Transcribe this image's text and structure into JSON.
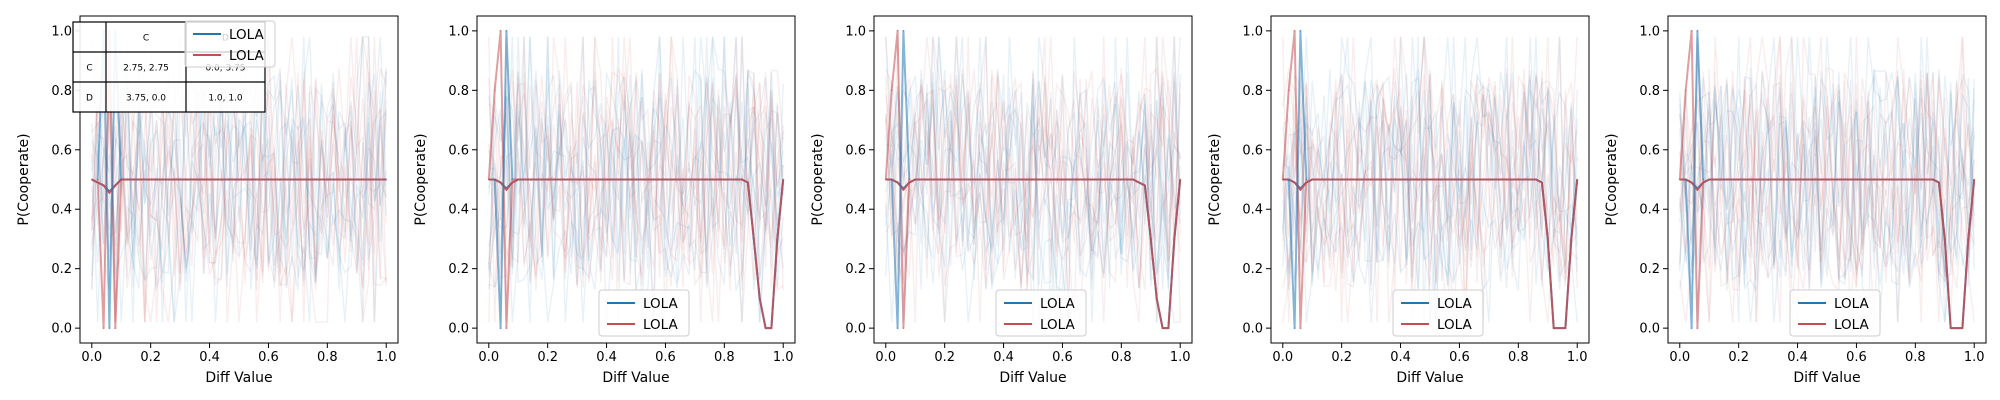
{
  "chart_data": [
    {
      "type": "line",
      "xlabel": "Diff Value",
      "ylabel": "P(Cooperate)",
      "xlim": [
        -0.04,
        1.04
      ],
      "ylim": [
        -0.05,
        1.05
      ],
      "xticks": [
        "0.0",
        "0.2",
        "0.4",
        "0.6",
        "0.8",
        "1.0"
      ],
      "yticks": [
        "0.0",
        "0.2",
        "0.4",
        "0.6",
        "0.8",
        "1.0"
      ],
      "legend_position": "upper-left",
      "legend": [
        {
          "label": "LOLA",
          "color": "#1f77b4"
        },
        {
          "label": "LOLA",
          "color": "#c44e52"
        }
      ],
      "payoff_table": {
        "col_headers": [
          "C",
          "D"
        ],
        "rows": [
          {
            "label": "C",
            "cells": [
              "2.75, 2.75",
              "0.0, 3.75"
            ]
          },
          {
            "label": "D",
            "cells": [
              "3.75, 0.0",
              "1.0, 1.0"
            ]
          }
        ]
      },
      "series": [
        {
          "color": "#1f77b4",
          "x": [
            0.0,
            0.02,
            0.04,
            0.06,
            0.08,
            0.1,
            0.2,
            0.3,
            0.4,
            0.5,
            0.6,
            0.7,
            0.8,
            0.9,
            1.0
          ],
          "y": [
            0.5,
            0.49,
            0.48,
            0.46,
            0.48,
            0.5,
            0.5,
            0.5,
            0.5,
            0.5,
            0.5,
            0.5,
            0.5,
            0.5,
            0.5
          ]
        },
        {
          "color": "#c44e52",
          "x": [
            0.0,
            0.02,
            0.04,
            0.06,
            0.08,
            0.1,
            0.2,
            0.3,
            0.4,
            0.5,
            0.6,
            0.7,
            0.8,
            0.9,
            1.0
          ],
          "y": [
            0.5,
            0.49,
            0.48,
            0.455,
            0.48,
            0.5,
            0.5,
            0.5,
            0.5,
            0.5,
            0.5,
            0.5,
            0.5,
            0.5,
            0.5
          ]
        },
        {
          "color": "#c44e52",
          "x": [
            0.02,
            0.04,
            0.06,
            0.08,
            0.1
          ],
          "y": [
            0.5,
            0.0,
            1.0,
            0.0,
            0.5
          ]
        },
        {
          "color": "#1f77b4",
          "x": [
            0.02,
            0.04,
            0.06,
            0.08,
            0.1
          ],
          "y": [
            0.5,
            1.0,
            0.0,
            1.0,
            0.5
          ]
        }
      ]
    },
    {
      "type": "line",
      "xlabel": "Diff Value",
      "ylabel": "P(Cooperate)",
      "xlim": [
        -0.04,
        1.04
      ],
      "ylim": [
        -0.05,
        1.05
      ],
      "xticks": [
        "0.0",
        "0.2",
        "0.4",
        "0.6",
        "0.8",
        "1.0"
      ],
      "yticks": [
        "0.0",
        "0.2",
        "0.4",
        "0.6",
        "0.8",
        "1.0"
      ],
      "legend_position": "lower-center",
      "legend": [
        {
          "label": "LOLA",
          "color": "#1f77b4"
        },
        {
          "label": "LOLA",
          "color": "#c44e52"
        }
      ],
      "series": [
        {
          "color": "#1f77b4",
          "x": [
            0.0,
            0.02,
            0.04,
            0.06,
            0.08,
            0.1,
            0.2,
            0.3,
            0.4,
            0.5,
            0.6,
            0.7,
            0.8,
            0.84,
            0.86,
            0.88,
            0.9,
            0.92,
            0.94,
            0.96,
            0.98,
            1.0
          ],
          "y": [
            0.5,
            0.5,
            0.49,
            0.47,
            0.49,
            0.5,
            0.5,
            0.5,
            0.5,
            0.5,
            0.5,
            0.5,
            0.5,
            0.5,
            0.5,
            0.49,
            0.3,
            0.1,
            0.0,
            0.0,
            0.3,
            0.5
          ]
        },
        {
          "color": "#c44e52",
          "x": [
            0.0,
            0.02,
            0.04,
            0.06,
            0.08,
            0.1,
            0.2,
            0.3,
            0.4,
            0.5,
            0.6,
            0.7,
            0.8,
            0.84,
            0.86,
            0.88,
            0.9,
            0.92,
            0.94,
            0.96,
            0.98,
            1.0
          ],
          "y": [
            0.5,
            0.5,
            0.49,
            0.465,
            0.49,
            0.5,
            0.5,
            0.5,
            0.5,
            0.5,
            0.5,
            0.5,
            0.5,
            0.5,
            0.5,
            0.49,
            0.3,
            0.1,
            0.0,
            0.0,
            0.3,
            0.5
          ]
        },
        {
          "color": "#c44e52",
          "x": [
            0.0,
            0.02,
            0.04,
            0.06,
            0.08,
            0.1
          ],
          "y": [
            0.5,
            0.8,
            1.0,
            0.0,
            0.5,
            0.5
          ]
        },
        {
          "color": "#1f77b4",
          "x": [
            0.02,
            0.04,
            0.06,
            0.08
          ],
          "y": [
            0.5,
            0.0,
            1.0,
            0.5
          ]
        }
      ]
    },
    {
      "type": "line",
      "xlabel": "Diff Value",
      "ylabel": "P(Cooperate)",
      "xlim": [
        -0.04,
        1.04
      ],
      "ylim": [
        -0.05,
        1.05
      ],
      "xticks": [
        "0.0",
        "0.2",
        "0.4",
        "0.6",
        "0.8",
        "1.0"
      ],
      "yticks": [
        "0.0",
        "0.2",
        "0.4",
        "0.6",
        "0.8",
        "1.0"
      ],
      "legend_position": "lower-center",
      "legend": [
        {
          "label": "LOLA",
          "color": "#1f77b4"
        },
        {
          "label": "LOLA",
          "color": "#c44e52"
        }
      ],
      "series": [
        {
          "color": "#1f77b4",
          "x": [
            0.0,
            0.02,
            0.04,
            0.06,
            0.08,
            0.1,
            0.2,
            0.3,
            0.4,
            0.5,
            0.6,
            0.7,
            0.8,
            0.84,
            0.86,
            0.88,
            0.9,
            0.92,
            0.94,
            0.96,
            0.98,
            1.0
          ],
          "y": [
            0.5,
            0.5,
            0.49,
            0.47,
            0.49,
            0.5,
            0.5,
            0.5,
            0.5,
            0.5,
            0.5,
            0.5,
            0.5,
            0.5,
            0.49,
            0.48,
            0.3,
            0.1,
            0.0,
            0.0,
            0.3,
            0.5
          ]
        },
        {
          "color": "#c44e52",
          "x": [
            0.0,
            0.02,
            0.04,
            0.06,
            0.08,
            0.1,
            0.2,
            0.3,
            0.4,
            0.5,
            0.6,
            0.7,
            0.8,
            0.84,
            0.86,
            0.88,
            0.9,
            0.92,
            0.94,
            0.96,
            0.98,
            1.0
          ],
          "y": [
            0.5,
            0.5,
            0.49,
            0.465,
            0.49,
            0.5,
            0.5,
            0.5,
            0.5,
            0.5,
            0.5,
            0.5,
            0.5,
            0.5,
            0.49,
            0.48,
            0.3,
            0.1,
            0.0,
            0.0,
            0.3,
            0.5
          ]
        },
        {
          "color": "#c44e52",
          "x": [
            0.0,
            0.02,
            0.04,
            0.06,
            0.08
          ],
          "y": [
            0.5,
            0.8,
            1.0,
            0.0,
            0.5
          ]
        },
        {
          "color": "#1f77b4",
          "x": [
            0.02,
            0.04,
            0.06,
            0.08
          ],
          "y": [
            0.5,
            0.0,
            1.0,
            0.5
          ]
        }
      ]
    },
    {
      "type": "line",
      "xlabel": "Diff Value",
      "ylabel": "P(Cooperate)",
      "xlim": [
        -0.04,
        1.04
      ],
      "ylim": [
        -0.05,
        1.05
      ],
      "xticks": [
        "0.0",
        "0.2",
        "0.4",
        "0.6",
        "0.8",
        "1.0"
      ],
      "yticks": [
        "0.0",
        "0.2",
        "0.4",
        "0.6",
        "0.8",
        "1.0"
      ],
      "legend_position": "lower-center",
      "legend": [
        {
          "label": "LOLA",
          "color": "#1f77b4"
        },
        {
          "label": "LOLA",
          "color": "#c44e52"
        }
      ],
      "series": [
        {
          "color": "#1f77b4",
          "x": [
            0.0,
            0.02,
            0.04,
            0.06,
            0.08,
            0.1,
            0.2,
            0.3,
            0.4,
            0.5,
            0.6,
            0.7,
            0.8,
            0.84,
            0.86,
            0.88,
            0.9,
            0.92,
            0.94,
            0.96,
            0.98,
            1.0
          ],
          "y": [
            0.5,
            0.5,
            0.49,
            0.47,
            0.49,
            0.5,
            0.5,
            0.5,
            0.5,
            0.5,
            0.5,
            0.5,
            0.5,
            0.5,
            0.5,
            0.49,
            0.3,
            0.0,
            0.0,
            0.0,
            0.3,
            0.5
          ]
        },
        {
          "color": "#c44e52",
          "x": [
            0.0,
            0.02,
            0.04,
            0.06,
            0.08,
            0.1,
            0.2,
            0.3,
            0.4,
            0.5,
            0.6,
            0.7,
            0.8,
            0.84,
            0.86,
            0.88,
            0.9,
            0.92,
            0.94,
            0.96,
            0.98,
            1.0
          ],
          "y": [
            0.5,
            0.5,
            0.49,
            0.465,
            0.49,
            0.5,
            0.5,
            0.5,
            0.5,
            0.5,
            0.5,
            0.5,
            0.5,
            0.5,
            0.5,
            0.49,
            0.3,
            0.0,
            0.0,
            0.0,
            0.3,
            0.5
          ]
        },
        {
          "color": "#c44e52",
          "x": [
            0.0,
            0.02,
            0.04,
            0.06,
            0.08
          ],
          "y": [
            0.5,
            0.8,
            1.0,
            0.0,
            0.5
          ]
        },
        {
          "color": "#1f77b4",
          "x": [
            0.02,
            0.04,
            0.06,
            0.08
          ],
          "y": [
            0.5,
            0.0,
            1.0,
            0.5
          ]
        }
      ]
    },
    {
      "type": "line",
      "xlabel": "Diff Value",
      "ylabel": "P(Cooperate)",
      "xlim": [
        -0.04,
        1.04
      ],
      "ylim": [
        -0.05,
        1.05
      ],
      "xticks": [
        "0.0",
        "0.2",
        "0.4",
        "0.6",
        "0.8",
        "1.0"
      ],
      "yticks": [
        "0.0",
        "0.2",
        "0.4",
        "0.6",
        "0.8",
        "1.0"
      ],
      "legend_position": "lower-center",
      "legend": [
        {
          "label": "LOLA",
          "color": "#1f77b4"
        },
        {
          "label": "LOLA",
          "color": "#c44e52"
        }
      ],
      "series": [
        {
          "color": "#1f77b4",
          "x": [
            0.0,
            0.02,
            0.04,
            0.06,
            0.08,
            0.1,
            0.2,
            0.3,
            0.4,
            0.5,
            0.6,
            0.7,
            0.8,
            0.84,
            0.86,
            0.88,
            0.9,
            0.92,
            0.94,
            0.96,
            0.98,
            1.0
          ],
          "y": [
            0.5,
            0.5,
            0.49,
            0.47,
            0.49,
            0.5,
            0.5,
            0.5,
            0.5,
            0.5,
            0.5,
            0.5,
            0.5,
            0.5,
            0.5,
            0.49,
            0.3,
            0.0,
            0.0,
            0.0,
            0.3,
            0.5
          ]
        },
        {
          "color": "#c44e52",
          "x": [
            0.0,
            0.02,
            0.04,
            0.06,
            0.08,
            0.1,
            0.2,
            0.3,
            0.4,
            0.5,
            0.6,
            0.7,
            0.8,
            0.84,
            0.86,
            0.88,
            0.9,
            0.92,
            0.94,
            0.96,
            0.98,
            1.0
          ],
          "y": [
            0.5,
            0.5,
            0.49,
            0.465,
            0.49,
            0.5,
            0.5,
            0.5,
            0.5,
            0.5,
            0.5,
            0.5,
            0.5,
            0.5,
            0.5,
            0.49,
            0.3,
            0.0,
            0.0,
            0.0,
            0.3,
            0.5
          ]
        },
        {
          "color": "#c44e52",
          "x": [
            0.0,
            0.02,
            0.04,
            0.06,
            0.08
          ],
          "y": [
            0.5,
            0.8,
            1.0,
            0.0,
            0.5
          ]
        },
        {
          "color": "#1f77b4",
          "x": [
            0.02,
            0.04,
            0.06,
            0.08
          ],
          "y": [
            0.5,
            0.0,
            1.0,
            0.5
          ]
        }
      ]
    }
  ]
}
